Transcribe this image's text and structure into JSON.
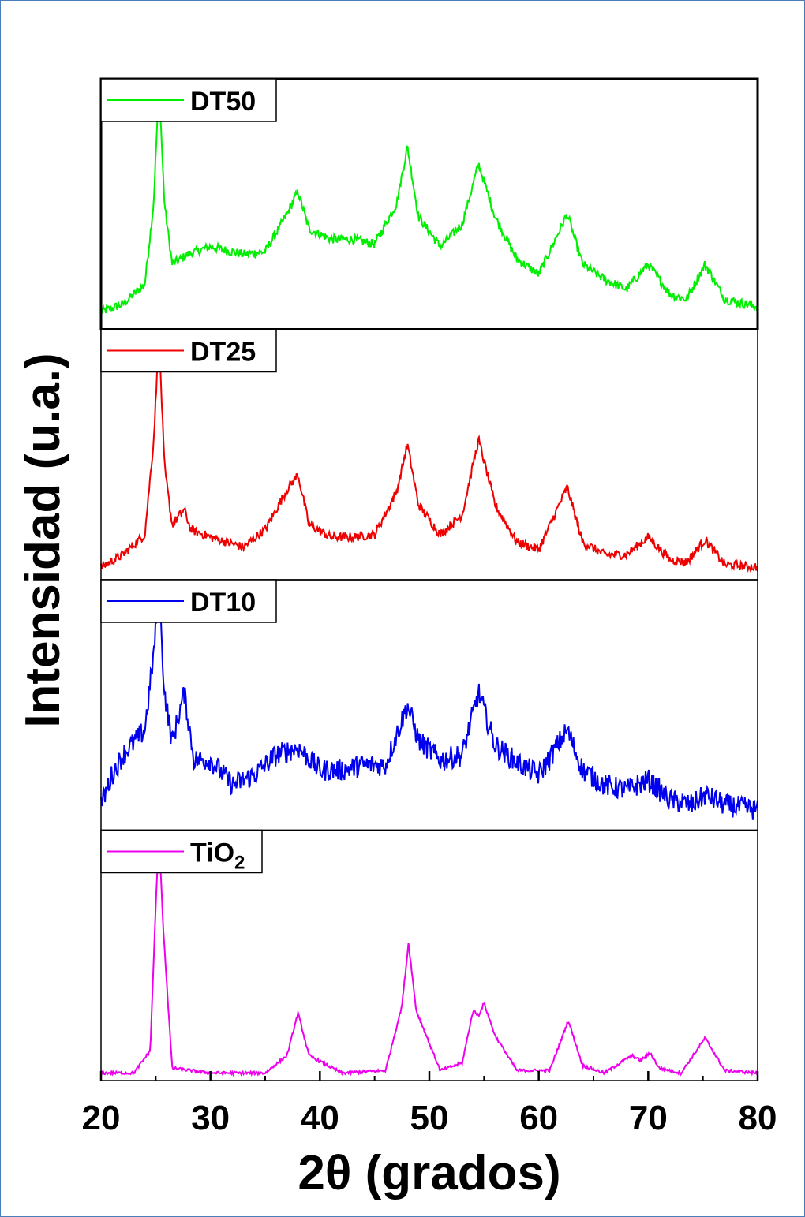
{
  "chart_data": {
    "type": "line",
    "xlabel": "2θ (grados)",
    "ylabel": "Intensidad (u.a.)",
    "xlim": [
      20,
      80
    ],
    "x_ticks": [
      "20",
      "30",
      "40",
      "50",
      "60",
      "70",
      "80"
    ],
    "grid": false,
    "legend_position": "top-left of each panel",
    "panels": [
      {
        "series_name": "DT50",
        "color": "#00ee00",
        "ylim": [
          0,
          1
        ],
        "noise": 0.018,
        "x": [
          20,
          22,
          24,
          24.8,
          25.3,
          25.8,
          26.5,
          28,
          30,
          33,
          35,
          37,
          38,
          39,
          41,
          43,
          45,
          47,
          48,
          49,
          51,
          53,
          54.5,
          56,
          58,
          60,
          62.6,
          64,
          66,
          68,
          70,
          72,
          73.5,
          75.2,
          77,
          80
        ],
        "y": [
          0.07,
          0.1,
          0.18,
          0.5,
          0.98,
          0.5,
          0.26,
          0.3,
          0.33,
          0.3,
          0.31,
          0.46,
          0.55,
          0.4,
          0.36,
          0.36,
          0.34,
          0.5,
          0.73,
          0.45,
          0.33,
          0.42,
          0.66,
          0.45,
          0.28,
          0.22,
          0.46,
          0.26,
          0.2,
          0.16,
          0.26,
          0.14,
          0.12,
          0.26,
          0.12,
          0.09
        ]
      },
      {
        "series_name": "DT25",
        "color": "#ee0000",
        "ylim": [
          0,
          1
        ],
        "noise": 0.018,
        "x": [
          20,
          22,
          24,
          24.8,
          25.3,
          25.8,
          26.5,
          27.6,
          28.2,
          30,
          33,
          35,
          37,
          38,
          39,
          41,
          43,
          45,
          47,
          48,
          49,
          51,
          53,
          54.5,
          56,
          58,
          60,
          62.6,
          64,
          66,
          68,
          70,
          72,
          73.5,
          75.2,
          77,
          80
        ],
        "y": [
          0.05,
          0.1,
          0.18,
          0.55,
          0.97,
          0.45,
          0.22,
          0.28,
          0.2,
          0.17,
          0.13,
          0.2,
          0.36,
          0.42,
          0.22,
          0.17,
          0.17,
          0.18,
          0.35,
          0.54,
          0.3,
          0.18,
          0.26,
          0.56,
          0.3,
          0.15,
          0.12,
          0.37,
          0.15,
          0.1,
          0.1,
          0.17,
          0.08,
          0.07,
          0.16,
          0.06,
          0.05
        ]
      },
      {
        "series_name": "DT10",
        "color": "#0000ee",
        "ylim": [
          0,
          1
        ],
        "noise": 0.045,
        "x": [
          20,
          21,
          22,
          23,
          24,
          24.8,
          25.3,
          25.8,
          26.5,
          27.6,
          28.5,
          30,
          32,
          34,
          36,
          38,
          40,
          42,
          44,
          46,
          48,
          49,
          51,
          53,
          54.5,
          56,
          58,
          60,
          62.6,
          64,
          66,
          68,
          70,
          72,
          74,
          75.2,
          77,
          80
        ],
        "y": [
          0.1,
          0.22,
          0.3,
          0.35,
          0.4,
          0.7,
          0.95,
          0.55,
          0.35,
          0.55,
          0.28,
          0.28,
          0.18,
          0.22,
          0.3,
          0.33,
          0.24,
          0.24,
          0.26,
          0.26,
          0.5,
          0.36,
          0.28,
          0.3,
          0.55,
          0.34,
          0.27,
          0.22,
          0.4,
          0.24,
          0.18,
          0.16,
          0.2,
          0.12,
          0.1,
          0.14,
          0.1,
          0.08
        ]
      },
      {
        "series_name": "TiO₂",
        "series_name_base": "TiO",
        "series_name_sub": "2",
        "color": "#ee00ee",
        "ylim": [
          0,
          1
        ],
        "noise": 0.006,
        "x": [
          20,
          23,
          24.5,
          25.0,
          25.3,
          25.7,
          26.5,
          30,
          35,
          37,
          38,
          39,
          42,
          46,
          47.5,
          48.1,
          48.8,
          51,
          53,
          54,
          54.5,
          55,
          56,
          58,
          61,
          62.7,
          64,
          66,
          68.5,
          69.3,
          70.2,
          71,
          73,
          75.2,
          77,
          80
        ],
        "y": [
          0.03,
          0.03,
          0.12,
          0.7,
          0.97,
          0.6,
          0.05,
          0.03,
          0.03,
          0.1,
          0.27,
          0.1,
          0.03,
          0.04,
          0.3,
          0.55,
          0.28,
          0.04,
          0.07,
          0.28,
          0.26,
          0.31,
          0.18,
          0.04,
          0.04,
          0.24,
          0.06,
          0.03,
          0.1,
          0.08,
          0.11,
          0.05,
          0.03,
          0.17,
          0.04,
          0.03
        ]
      }
    ]
  }
}
